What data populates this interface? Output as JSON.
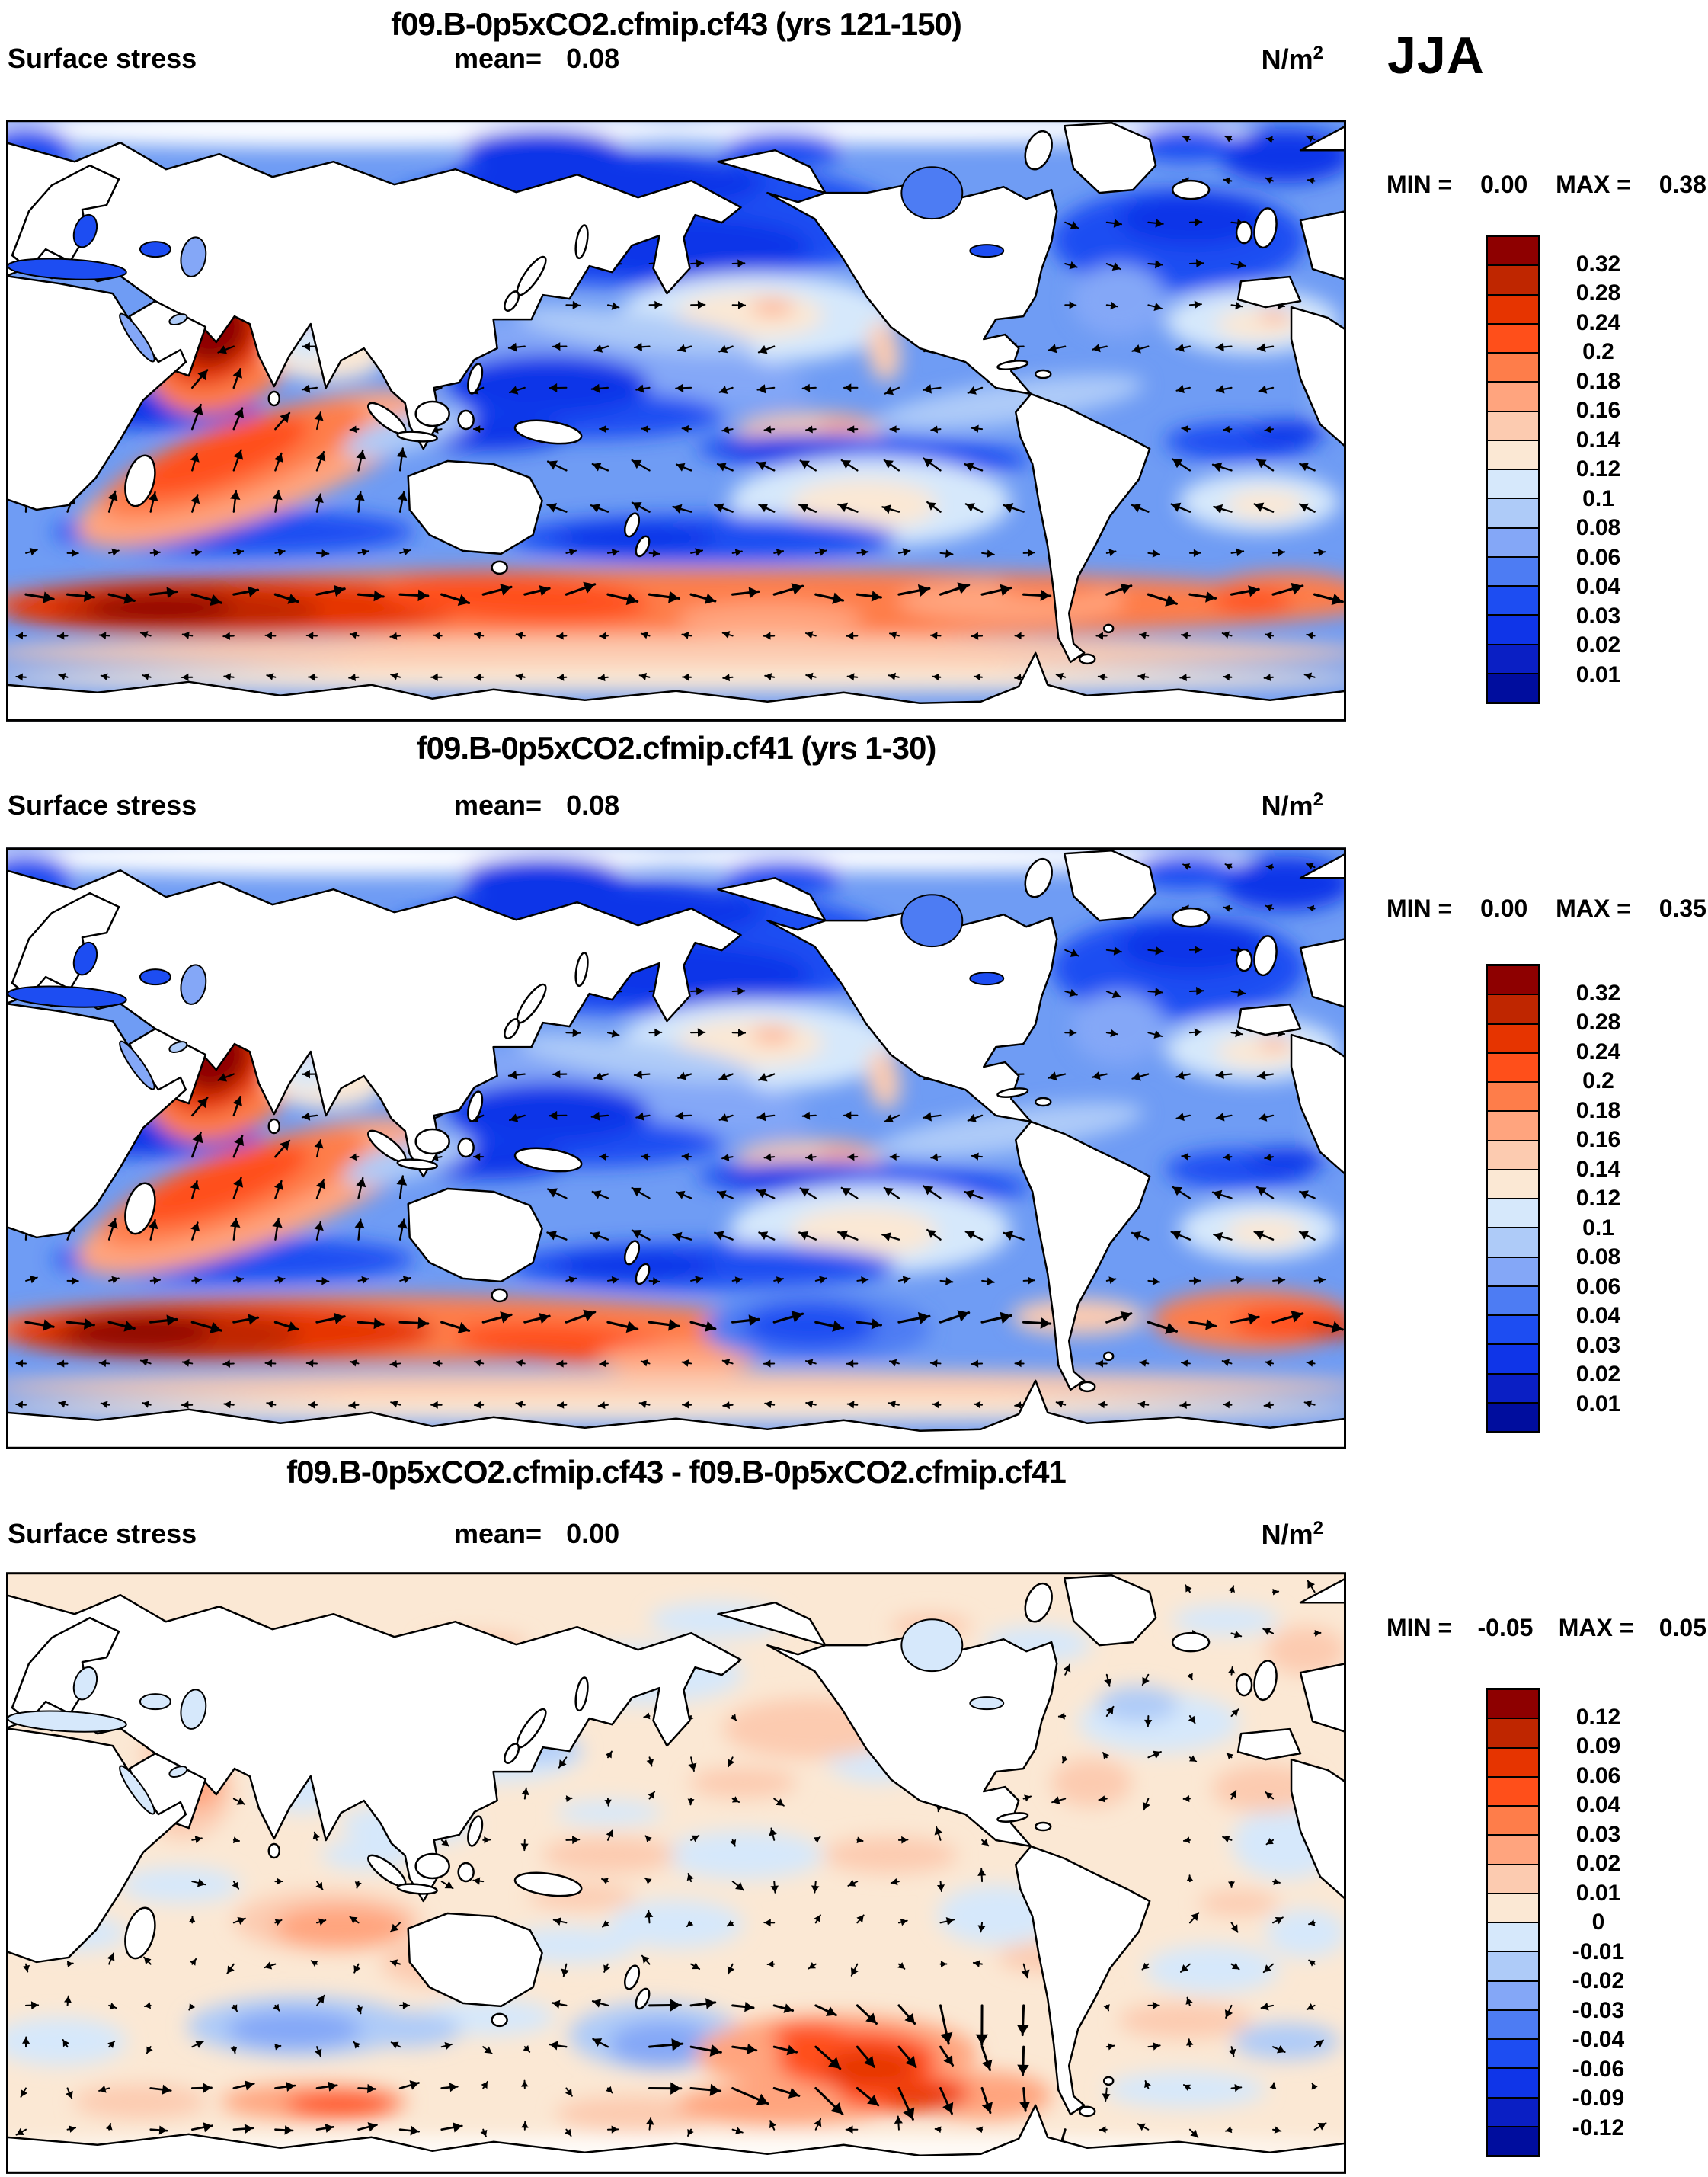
{
  "figure": {
    "season": "JJA"
  },
  "palette": [
    "#8e0000",
    "#bf2600",
    "#e63400",
    "#ff4f1a",
    "#fe7d4a",
    "#ffa47e",
    "#fccbb0",
    "#fbe8d4",
    "#d6e8fb",
    "#aecbf8",
    "#84a7f7",
    "#4d7cf3",
    "#1d4df2",
    "#0f35e8",
    "#0a1fc4",
    "#000d9e"
  ],
  "panels": [
    {
      "title": "f09.B-0p5xCO2.cfmip.cf43 (yrs 121-150)",
      "variable": "Surface stress",
      "mean_label": "mean=",
      "mean": "0.08",
      "units_base": "N/m",
      "units_exp": "2",
      "min_label": "MIN =",
      "min": "0.00",
      "max_label": "MAX =",
      "max": "0.38",
      "colorbar_labels": [
        "0.32",
        "0.28",
        "0.24",
        "0.2",
        "0.18",
        "0.16",
        "0.14",
        "0.12",
        "0.1",
        "0.08",
        "0.06",
        "0.04",
        "0.03",
        "0.02",
        "0.01"
      ]
    },
    {
      "title": "f09.B-0p5xCO2.cfmip.cf41 (yrs 1-30)",
      "variable": "Surface stress",
      "mean_label": "mean=",
      "mean": "0.08",
      "units_base": "N/m",
      "units_exp": "2",
      "min_label": "MIN =",
      "min": "0.00",
      "max_label": "MAX =",
      "max": "0.35",
      "colorbar_labels": [
        "0.32",
        "0.28",
        "0.24",
        "0.2",
        "0.18",
        "0.16",
        "0.14",
        "0.12",
        "0.1",
        "0.08",
        "0.06",
        "0.04",
        "0.03",
        "0.02",
        "0.01"
      ]
    },
    {
      "title": "f09.B-0p5xCO2.cfmip.cf43 - f09.B-0p5xCO2.cfmip.cf41",
      "variable": "Surface stress",
      "mean_label": "mean=",
      "mean": "0.00",
      "units_base": "N/m",
      "units_exp": "2",
      "min_label": "MIN =",
      "min": "-0.05",
      "max_label": "MAX =",
      "max": "0.05",
      "colorbar_labels": [
        "0.12",
        "0.09",
        "0.06",
        "0.04",
        "0.03",
        "0.02",
        "0.01",
        "0",
        "-0.01",
        "-0.02",
        "-0.03",
        "-0.04",
        "-0.06",
        "-0.09",
        "-0.12"
      ]
    }
  ],
  "chart_data": [
    {
      "type": "heatmap",
      "subtype": "global filled-contour map with wind-stress vectors",
      "title": "f09.B-0p5xCO2.cfmip.cf43 (yrs 121-150)",
      "variable": "Surface stress",
      "season": "JJA",
      "units": "N/m2",
      "mean": 0.08,
      "min": 0.0,
      "max": 0.38,
      "levels": [
        0.01,
        0.02,
        0.03,
        0.04,
        0.06,
        0.08,
        0.1,
        0.12,
        0.14,
        0.16,
        0.18,
        0.2,
        0.24,
        0.28,
        0.32
      ],
      "colormap": "blue (low) to red (high), 16 classes",
      "notable_features": [
        "strong southern-hemisphere westerly stress band 40-60S, maximum 0.24-0.38 N/m2 in the south Indian Ocean sector",
        "Somali jet / Arabian Sea monsoon maximum ~0.28-0.38 N/m2 with NE-directed vectors",
        "orange SE-trade band in the southern Indian Ocean ~0.14-0.2 N/m2",
        "very weak stress (<0.04) in equatorial west Pacific, along 30-35S band, and subpolar NW Pacific / NW Atlantic",
        "pale subtropical-high centers (~0.1-0.12) in NE Pacific, SE Pacific, N and S Atlantic"
      ]
    },
    {
      "type": "heatmap",
      "subtype": "global filled-contour map with wind-stress vectors",
      "title": "f09.B-0p5xCO2.cfmip.cf41 (yrs 1-30)",
      "variable": "Surface stress",
      "season": "JJA",
      "units": "N/m2",
      "mean": 0.08,
      "min": 0.0,
      "max": 0.35,
      "levels": [
        0.01,
        0.02,
        0.03,
        0.04,
        0.06,
        0.08,
        0.1,
        0.12,
        0.14,
        0.16,
        0.18,
        0.2,
        0.24,
        0.28,
        0.32
      ],
      "colormap": "blue (low) to red (high), 16 classes",
      "notable_features": [
        "southern westerly maximum concentrated in Indian Ocean sector (0.24-0.35 N/m2)",
        "weak (blue, <0.06) South Pacific sector of the westerly band",
        "Arabian Sea monsoon jet maximum similar to cf43",
        "orange stress again in Atlantic sector of Southern Ocean near 55S"
      ]
    },
    {
      "type": "heatmap",
      "subtype": "global filled-contour difference map with vector differences",
      "title": "f09.B-0p5xCO2.cfmip.cf43 - f09.B-0p5xCO2.cfmip.cf41",
      "variable": "Surface stress difference",
      "season": "JJA",
      "units": "N/m2",
      "mean": 0.0,
      "min": -0.05,
      "max": 0.05,
      "levels": [
        -0.12,
        -0.09,
        -0.06,
        -0.04,
        -0.03,
        -0.02,
        -0.01,
        0,
        0.01,
        0.02,
        0.03,
        0.04,
        0.06,
        0.09,
        0.12
      ],
      "colormap": "blue (negative) to red (positive), 16 classes",
      "notable_features": [
        "large positive differences (0.04-0.12 N/m2) in Southern Ocean south of New Zealand toward Drake Passage, with strong eastward/southward vector anomalies",
        "positive band near 60S in Indian sector (~0.04-0.06)",
        "negative patches (-0.02 to -0.04) south of Australia and east of New Zealand",
        "weak mottled differences (+/-0.01) over most other oceans"
      ]
    }
  ]
}
